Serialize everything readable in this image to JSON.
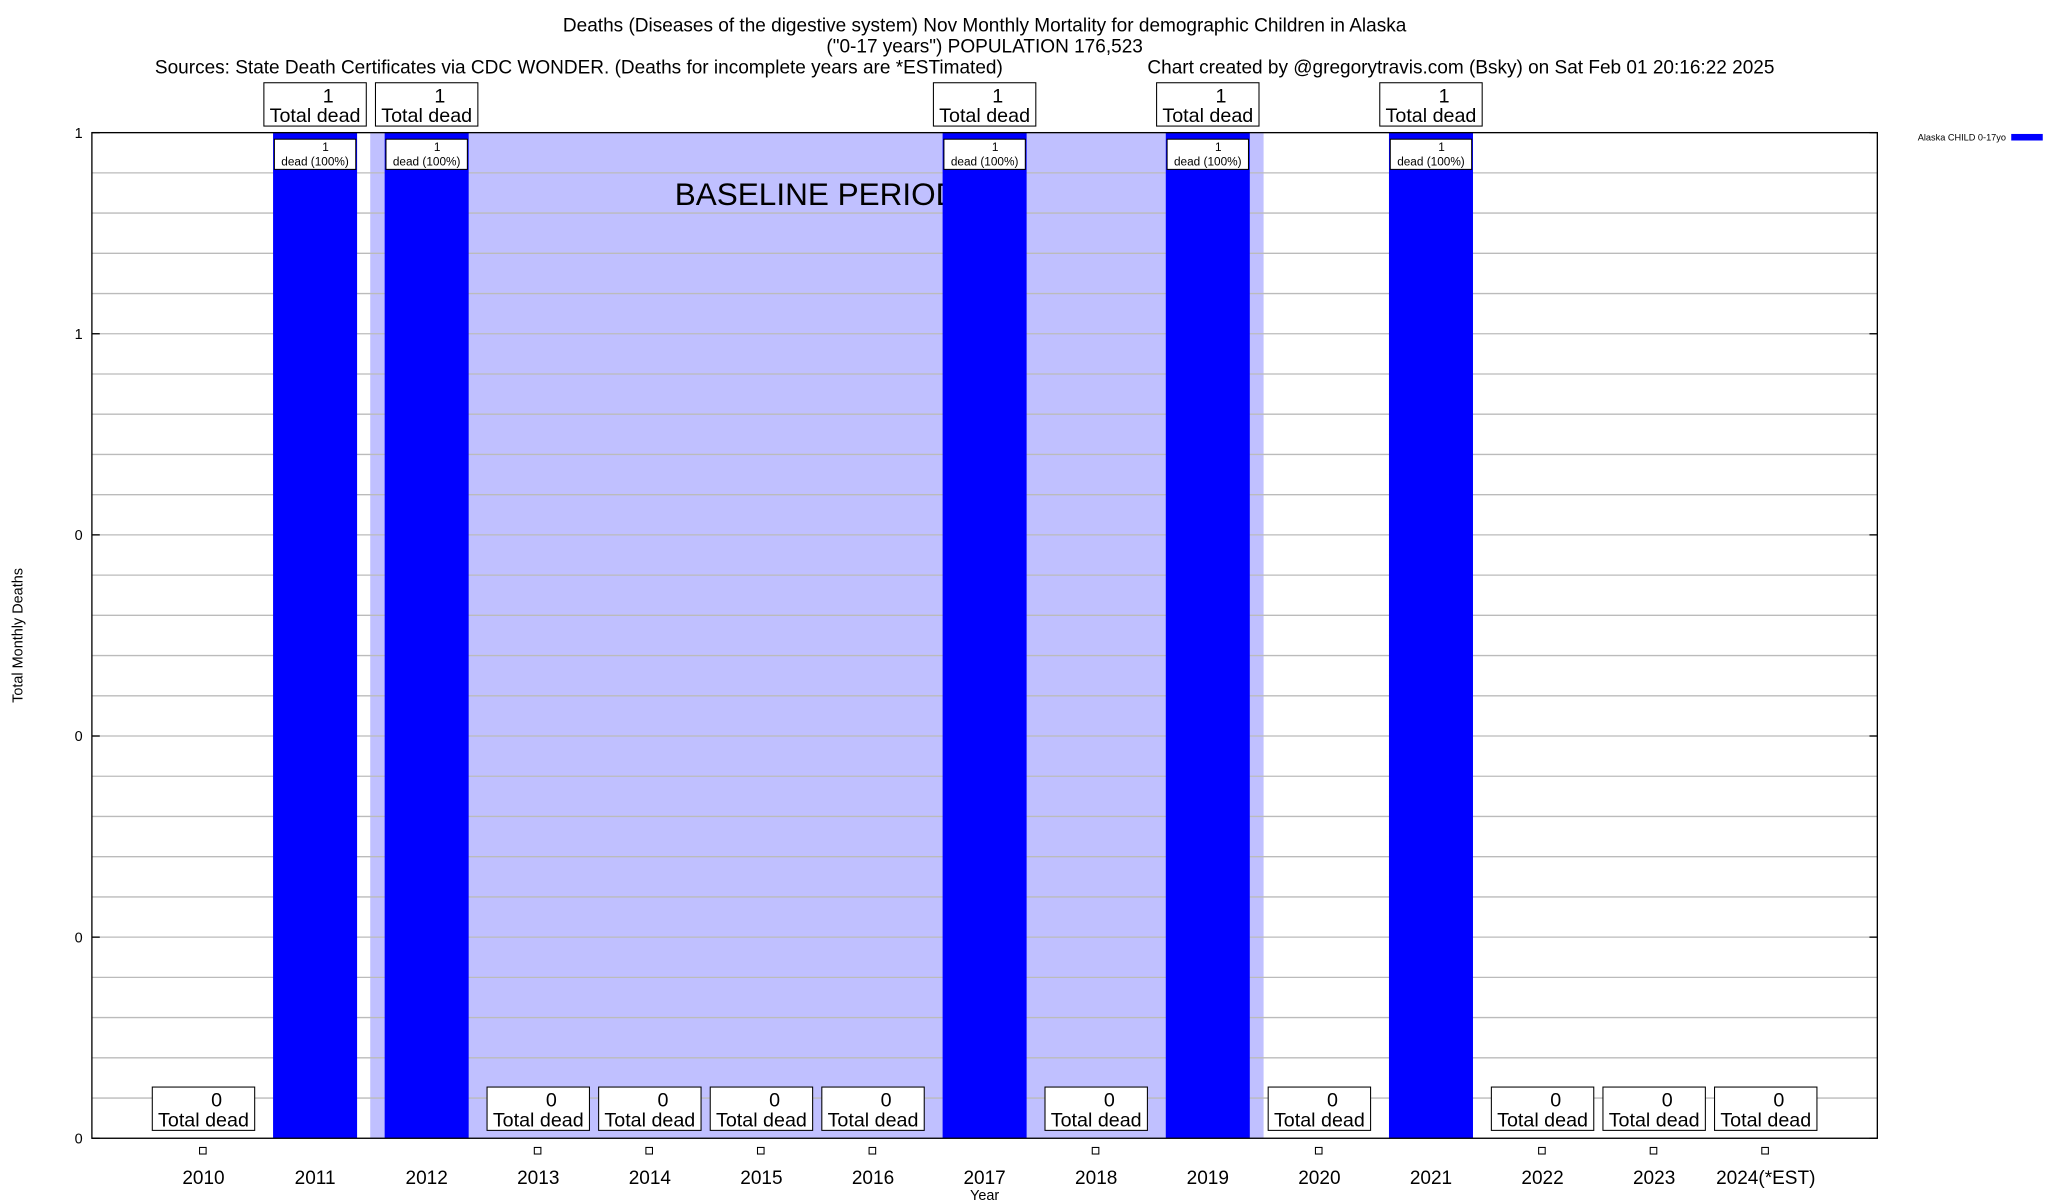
{
  "chart_data": {
    "type": "bar",
    "title_lines": [
      "Deaths (Diseases of the digestive system) Nov Monthly Mortality for demographic Children in Alaska",
      "(\"0-17 years\") POPULATION 176,523"
    ],
    "sources": "Sources: State Death Certificates via CDC WONDER. (Deaths for incomplete years are *ESTimated)",
    "credit": "Chart created by @gregorytravis.com (Bsky) on Sat Feb 01 20:16:22 2025",
    "xlabel": "Year",
    "ylabel": "Total Monthly Deaths",
    "ylim": [
      0,
      1
    ],
    "ytick_labels": [
      "0",
      "0",
      "0",
      "0",
      "1",
      "1"
    ],
    "ytick_values": [
      0,
      0.2,
      0.4,
      0.6,
      0.8,
      1.0
    ],
    "grid": true,
    "legend": {
      "label": "Alaska CHILD 0-17yo",
      "placement": "top-right",
      "color": "#0000ff"
    },
    "bar_color": "#0000ff",
    "baseline": {
      "label": "BASELINE PERIOD",
      "from": "2012",
      "to": "2019",
      "color": "#c0c0ff"
    },
    "categories": [
      "2010",
      "2011",
      "2012",
      "2013",
      "2014",
      "2015",
      "2016",
      "2017",
      "2018",
      "2019",
      "2020",
      "2021",
      "2022",
      "2023",
      "2024(*EST)"
    ],
    "values": [
      0,
      1,
      1,
      0,
      0,
      0,
      0,
      1,
      0,
      1,
      0,
      1,
      0,
      0,
      0
    ],
    "total_label": "Total dead",
    "inner_label": "dead (100%)"
  }
}
